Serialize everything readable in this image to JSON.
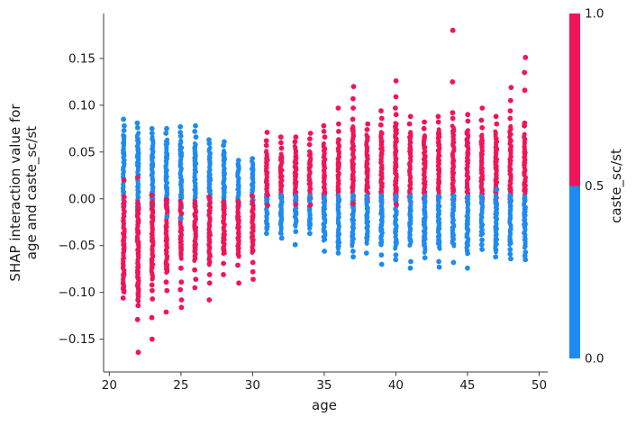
{
  "chart_data": {
    "type": "scatter",
    "title": "",
    "xlabel": "age",
    "ylabel_line1": "SHAP interaction value for",
    "ylabel_line2": "age and caste_sc/st",
    "xlim": [
      19.6,
      50.6
    ],
    "ylim": [
      -0.185,
      0.198
    ],
    "xticks": [
      20,
      25,
      30,
      35,
      40,
      45,
      50
    ],
    "ytick_values": [
      0.15,
      0.1,
      0.05,
      0.0,
      -0.05,
      -0.1,
      -0.15
    ],
    "ytick_labels": [
      "0.15",
      "0.10",
      "0.05",
      "0.00",
      "−0.05",
      "−0.10",
      "−0.15"
    ],
    "grid": false,
    "legend": "none",
    "colors": {
      "blue": "#1e8bf0",
      "pink": "#f01559",
      "axis": "#3d3d3d",
      "text": "#1a1a1a"
    },
    "colorbar": {
      "label": "caste_sc/st",
      "tick_values": [
        1.0,
        0.5,
        0.0
      ],
      "tick_labels": [
        "1.0",
        "0.5",
        "0.0"
      ],
      "threshold": 0.5,
      "high_color": "#f01559",
      "low_color": "#1e8bf0",
      "orientation": "vertical",
      "position": "right"
    },
    "columns": [
      {
        "age": 21,
        "top": {
          "color": "blue",
          "hi": 0.068,
          "lo": -0.009,
          "sparse": [
            0.073,
            0.078,
            0.085
          ]
        },
        "bottom": {
          "color": "pink",
          "hi": -0.002,
          "lo": -0.1,
          "sparse": [
            -0.106
          ]
        },
        "extra": [
          {
            "color": "pink",
            "v": 0.02
          },
          {
            "color": "pink",
            "v": 0.002
          }
        ]
      },
      {
        "age": 22,
        "top": {
          "color": "blue",
          "hi": 0.07,
          "lo": -0.013,
          "sparse": [
            0.076,
            0.081
          ]
        },
        "bottom": {
          "color": "pink",
          "hi": -0.002,
          "lo": -0.11,
          "sparse": [
            -0.114,
            -0.129,
            -0.164
          ]
        },
        "extra": [
          {
            "color": "pink",
            "v": 0.023
          }
        ]
      },
      {
        "age": 23,
        "top": {
          "color": "blue",
          "hi": 0.066,
          "lo": -0.011,
          "sparse": [
            0.07,
            0.075
          ]
        },
        "bottom": {
          "color": "pink",
          "hi": -0.002,
          "lo": -0.086,
          "sparse": [
            -0.092,
            -0.098,
            -0.107,
            -0.127,
            -0.15
          ]
        },
        "extra": [
          {
            "color": "pink",
            "v": 0.004
          }
        ]
      },
      {
        "age": 24,
        "top": {
          "color": "blue",
          "hi": 0.064,
          "lo": -0.011,
          "sparse": [
            0.07,
            0.075
          ]
        },
        "bottom": {
          "color": "pink",
          "hi": -0.002,
          "lo": -0.079,
          "sparse": [
            -0.089,
            -0.098,
            -0.121
          ]
        },
        "extra": [
          {
            "color": "blue",
            "v": -0.019
          },
          {
            "color": "pink",
            "v": -0.001
          }
        ]
      },
      {
        "age": 25,
        "top": {
          "color": "blue",
          "hi": 0.062,
          "lo": -0.01,
          "sparse": [
            0.067,
            0.071,
            0.077
          ]
        },
        "bottom": {
          "color": "pink",
          "hi": -0.002,
          "lo": -0.064,
          "sparse": [
            -0.074,
            -0.089,
            -0.097,
            -0.108,
            -0.116
          ]
        },
        "extra": [
          {
            "color": "blue",
            "v": -0.021
          }
        ]
      },
      {
        "age": 26,
        "top": {
          "color": "blue",
          "hi": 0.06,
          "lo": -0.009,
          "sparse": [
            0.066,
            0.072,
            0.078
          ]
        },
        "bottom": {
          "color": "pink",
          "hi": -0.002,
          "lo": -0.066,
          "sparse": [
            -0.076,
            -0.086,
            -0.095
          ]
        },
        "extra": []
      },
      {
        "age": 27,
        "top": {
          "color": "blue",
          "hi": 0.055,
          "lo": -0.009,
          "sparse": [
            0.059,
            0.063
          ]
        },
        "bottom": {
          "color": "pink",
          "hi": -0.002,
          "lo": -0.071,
          "sparse": [
            -0.081,
            -0.09,
            -0.108
          ]
        },
        "extra": [
          {
            "color": "pink",
            "v": 0.002
          }
        ]
      },
      {
        "age": 28,
        "top": {
          "color": "blue",
          "hi": 0.052,
          "lo": -0.009,
          "sparse": [
            0.057,
            0.061
          ]
        },
        "bottom": {
          "color": "pink",
          "hi": -0.002,
          "lo": -0.059,
          "sparse": [
            -0.069,
            -0.081
          ]
        },
        "extra": []
      },
      {
        "age": 29,
        "top": {
          "color": "blue",
          "hi": 0.038,
          "lo": -0.009,
          "sparse": [
            0.041
          ]
        },
        "bottom": {
          "color": "pink",
          "hi": -0.002,
          "lo": -0.062,
          "sparse": [
            -0.071,
            -0.09
          ]
        },
        "extra": []
      },
      {
        "age": 30,
        "top": {
          "color": "blue",
          "hi": 0.04,
          "lo": -0.007,
          "sparse": [
            0.043
          ]
        },
        "bottom": {
          "color": "pink",
          "hi": -0.002,
          "lo": -0.057,
          "sparse": [
            -0.068,
            -0.078,
            -0.086
          ]
        },
        "extra": [
          {
            "color": "pink",
            "v": 0.003
          }
        ]
      },
      {
        "age": 31,
        "top": {
          "color": "pink",
          "hi": 0.052,
          "lo": -0.003,
          "sparse": [
            0.057,
            0.062,
            0.071
          ]
        },
        "bottom": {
          "color": "blue",
          "hi": 0.005,
          "lo": -0.033,
          "sparse": [
            -0.037
          ]
        },
        "extra": [
          {
            "color": "pink",
            "v": 0.004
          },
          {
            "color": "pink",
            "v": -0.007
          }
        ]
      },
      {
        "age": 32,
        "top": {
          "color": "pink",
          "hi": 0.048,
          "lo": -0.003,
          "sparse": [
            0.054,
            0.06,
            0.066
          ]
        },
        "bottom": {
          "color": "blue",
          "hi": 0.004,
          "lo": -0.038,
          "sparse": [
            -0.042
          ]
        },
        "extra": []
      },
      {
        "age": 33,
        "top": {
          "color": "pink",
          "hi": 0.056,
          "lo": -0.003,
          "sparse": [
            0.061,
            0.066
          ]
        },
        "bottom": {
          "color": "blue",
          "hi": 0.004,
          "lo": -0.03,
          "sparse": [
            -0.035,
            -0.049
          ]
        },
        "extra": [
          {
            "color": "pink",
            "v": -0.006
          }
        ]
      },
      {
        "age": 34,
        "top": {
          "color": "pink",
          "hi": 0.052,
          "lo": -0.003,
          "sparse": [
            0.058,
            0.064,
            0.07
          ]
        },
        "bottom": {
          "color": "blue",
          "hi": 0.004,
          "lo": -0.032,
          "sparse": [
            -0.037
          ]
        },
        "extra": [
          {
            "color": "pink",
            "v": -0.007
          }
        ]
      },
      {
        "age": 35,
        "top": {
          "color": "pink",
          "hi": 0.06,
          "lo": -0.003,
          "sparse": [
            0.066,
            0.072,
            0.078
          ]
        },
        "bottom": {
          "color": "blue",
          "hi": 0.004,
          "lo": -0.045,
          "sparse": [
            -0.056
          ]
        },
        "extra": []
      },
      {
        "age": 36,
        "top": {
          "color": "pink",
          "hi": 0.065,
          "lo": -0.003,
          "sparse": [
            0.072,
            0.08,
            0.097
          ]
        },
        "bottom": {
          "color": "blue",
          "hi": 0.004,
          "lo": -0.053,
          "sparse": [
            -0.058
          ]
        },
        "extra": []
      },
      {
        "age": 37,
        "top": {
          "color": "pink",
          "hi": 0.078,
          "lo": -0.003,
          "sparse": [
            0.085,
            0.097,
            0.107,
            0.12
          ]
        },
        "bottom": {
          "color": "blue",
          "hi": 0.004,
          "lo": -0.05,
          "sparse": [
            -0.056,
            -0.062
          ]
        },
        "extra": [
          {
            "color": "pink",
            "v": -0.005
          }
        ]
      },
      {
        "age": 38,
        "top": {
          "color": "pink",
          "hi": 0.068,
          "lo": -0.003,
          "sparse": [
            0.074,
            0.08
          ]
        },
        "bottom": {
          "color": "blue",
          "hi": 0.004,
          "lo": -0.048,
          "sparse": [
            -0.058
          ]
        },
        "extra": []
      },
      {
        "age": 39,
        "top": {
          "color": "pink",
          "hi": 0.072,
          "lo": -0.003,
          "sparse": [
            0.079,
            0.086,
            0.094
          ]
        },
        "bottom": {
          "color": "blue",
          "hi": 0.004,
          "lo": -0.05,
          "sparse": [
            -0.06,
            -0.07
          ]
        },
        "extra": []
      },
      {
        "age": 40,
        "top": {
          "color": "pink",
          "hi": 0.082,
          "lo": -0.003,
          "sparse": [
            0.09,
            0.097,
            0.109,
            0.126
          ]
        },
        "bottom": {
          "color": "blue",
          "hi": 0.004,
          "lo": -0.053,
          "sparse": [
            -0.06,
            -0.065
          ]
        },
        "extra": [
          {
            "color": "pink",
            "v": -0.006
          }
        ]
      },
      {
        "age": 41,
        "top": {
          "color": "pink",
          "hi": 0.072,
          "lo": -0.003,
          "sparse": [
            0.08,
            0.088
          ]
        },
        "bottom": {
          "color": "blue",
          "hi": 0.004,
          "lo": -0.05,
          "sparse": [
            -0.067,
            -0.074
          ]
        },
        "extra": []
      },
      {
        "age": 42,
        "top": {
          "color": "pink",
          "hi": 0.068,
          "lo": -0.003,
          "sparse": [
            0.075,
            0.082
          ]
        },
        "bottom": {
          "color": "blue",
          "hi": 0.004,
          "lo": -0.058,
          "sparse": [
            -0.063
          ]
        },
        "extra": []
      },
      {
        "age": 43,
        "top": {
          "color": "pink",
          "hi": 0.075,
          "lo": -0.003,
          "sparse": [
            0.082,
            0.088
          ]
        },
        "bottom": {
          "color": "blue",
          "hi": 0.004,
          "lo": -0.053,
          "sparse": [
            -0.067,
            -0.073
          ]
        },
        "extra": []
      },
      {
        "age": 44,
        "top": {
          "color": "pink",
          "hi": 0.078,
          "lo": -0.003,
          "sparse": [
            0.086,
            0.092,
            0.125,
            0.18
          ]
        },
        "bottom": {
          "color": "blue",
          "hi": 0.004,
          "lo": -0.05,
          "sparse": [
            -0.068
          ]
        },
        "extra": [
          {
            "color": "blue",
            "v": 0.003
          }
        ]
      },
      {
        "age": 45,
        "top": {
          "color": "pink",
          "hi": 0.075,
          "lo": -0.003,
          "sparse": [
            0.083,
            0.09
          ]
        },
        "bottom": {
          "color": "blue",
          "hi": 0.004,
          "lo": -0.059,
          "sparse": [
            -0.074
          ]
        },
        "extra": [
          {
            "color": "blue",
            "v": 0.002
          }
        ]
      },
      {
        "age": 46,
        "top": {
          "color": "pink",
          "hi": 0.068,
          "lo": -0.003,
          "sparse": [
            0.076,
            0.084,
            0.097
          ]
        },
        "bottom": {
          "color": "blue",
          "hi": 0.004,
          "lo": -0.039,
          "sparse": [
            -0.044,
            -0.049,
            -0.054
          ]
        },
        "extra": []
      },
      {
        "age": 47,
        "top": {
          "color": "pink",
          "hi": 0.072,
          "lo": -0.003,
          "sparse": [
            0.08,
            0.088
          ]
        },
        "bottom": {
          "color": "blue",
          "hi": 0.004,
          "lo": -0.057,
          "sparse": [
            -0.062
          ]
        },
        "extra": [
          {
            "color": "blue",
            "v": 0.01
          }
        ]
      },
      {
        "age": 48,
        "top": {
          "color": "pink",
          "hi": 0.078,
          "lo": -0.003,
          "sparse": [
            0.086,
            0.094,
            0.105,
            0.119
          ]
        },
        "bottom": {
          "color": "blue",
          "hi": 0.004,
          "lo": -0.049,
          "sparse": [
            -0.054,
            -0.059,
            -0.064
          ]
        },
        "extra": []
      },
      {
        "age": 49,
        "top": {
          "color": "pink",
          "hi": 0.07,
          "lo": -0.003,
          "sparse": [
            0.078,
            0.081,
            0.116,
            0.135,
            0.151
          ]
        },
        "bottom": {
          "color": "blue",
          "hi": 0.004,
          "lo": -0.052,
          "sparse": [
            -0.057,
            -0.061,
            -0.065
          ]
        },
        "extra": []
      }
    ]
  }
}
